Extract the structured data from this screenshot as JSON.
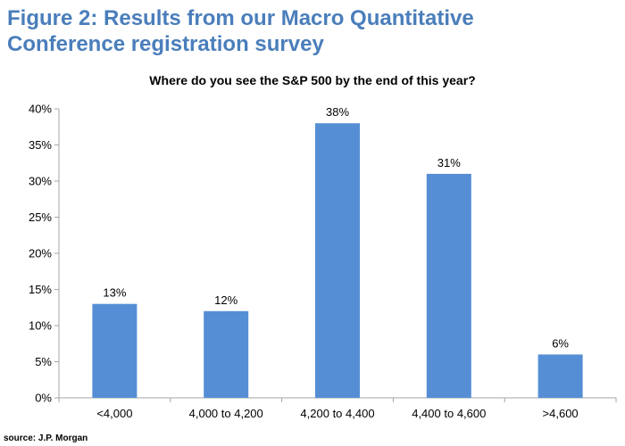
{
  "figure_title": "Figure 2: Results from our Macro Quantitative Conference registration survey",
  "source": "source: J.P. Morgan",
  "colors": {
    "bar": "#558ed5",
    "title": "#4a7ebb",
    "axis": "#a6a6a6"
  },
  "chart_data": {
    "type": "bar",
    "title": "Where do you see the S&P 500 by the end of this year?",
    "categories": [
      "<4,000",
      "4,000 to 4,200",
      "4,200 to 4,400",
      "4,400 to 4,600",
      ">4,600"
    ],
    "values": [
      13,
      12,
      38,
      31,
      6
    ],
    "data_labels": [
      "13%",
      "12%",
      "38%",
      "31%",
      "6%"
    ],
    "ylim": [
      0,
      40
    ],
    "yticks": [
      0,
      5,
      10,
      15,
      20,
      25,
      30,
      35,
      40
    ],
    "ytick_labels": [
      "0%",
      "5%",
      "10%",
      "15%",
      "20%",
      "25%",
      "30%",
      "35%",
      "40%"
    ],
    "xlabel": "",
    "ylabel": "",
    "grid": false,
    "legend": "none"
  }
}
